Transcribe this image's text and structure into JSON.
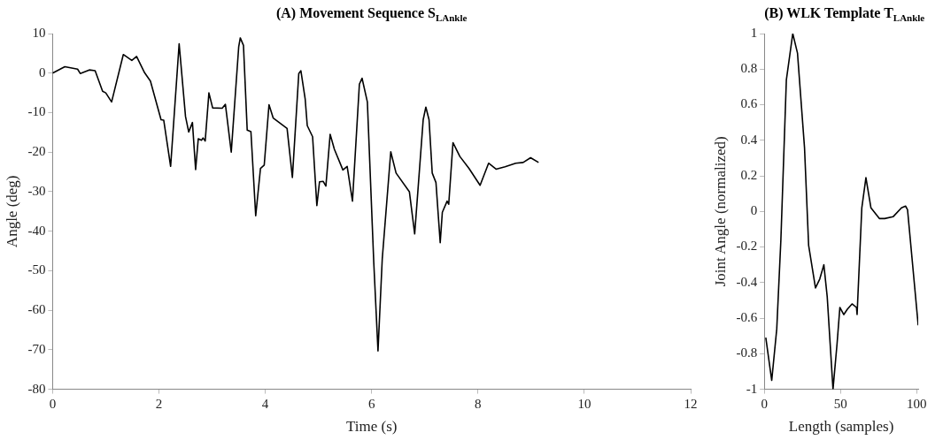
{
  "chart_data": [
    {
      "type": "line",
      "title": "(A) Movement Sequence S$_{LAnkle}$",
      "xlabel": "Time (s)",
      "ylabel": "Angle (deg)",
      "color": "#000000",
      "x": [
        0,
        0.23,
        0.47,
        0.52,
        0.69,
        0.8,
        0.94,
        1.0,
        1.11,
        1.33,
        1.49,
        1.58,
        1.73,
        1.84,
        2.04,
        2.09,
        2.22,
        2.38,
        2.5,
        2.56,
        2.63,
        2.69,
        2.74,
        2.8,
        2.83,
        2.87,
        2.94,
        3.01,
        3.19,
        3.25,
        3.36,
        3.5,
        3.53,
        3.59,
        3.66,
        3.73,
        3.82,
        3.91,
        3.98,
        4.07,
        4.15,
        4.41,
        4.51,
        4.63,
        4.67,
        4.75,
        4.79,
        4.89,
        4.97,
        5.02,
        5.09,
        5.14,
        5.22,
        5.3,
        5.46,
        5.54,
        5.64,
        5.77,
        5.82,
        5.92,
        6.04,
        6.12,
        6.2,
        6.36,
        6.46,
        6.71,
        6.81,
        6.97,
        7.02,
        7.08,
        7.14,
        7.21,
        7.29,
        7.33,
        7.42,
        7.45,
        7.53,
        7.66,
        7.83,
        8.04,
        8.2,
        8.34,
        8.51,
        8.71,
        8.85,
        8.99,
        9.14
      ],
      "values": [
        0,
        1.6,
        1.0,
        -0.1,
        0.8,
        0.6,
        -4.6,
        -5,
        -7.3,
        4.7,
        3.2,
        4.2,
        0.1,
        -2,
        -11.8,
        -11.9,
        -23.6,
        7.4,
        -11,
        -14.9,
        -12.5,
        -24.4,
        -16.6,
        -17,
        -16.4,
        -17.2,
        -5,
        -8.8,
        -8.9,
        -7.9,
        -20,
        6.6,
        8.9,
        7,
        -14.4,
        -14.8,
        -36.1,
        -24.1,
        -23.3,
        -8,
        -11.4,
        -14,
        -26.4,
        -0.1,
        0.6,
        -6.5,
        -13.3,
        -16.1,
        -33.5,
        -27.5,
        -27.4,
        -28.6,
        -15.5,
        -19.3,
        -24.5,
        -23.6,
        -32.4,
        -2.8,
        -1.3,
        -7.3,
        -47.8,
        -70.3,
        -47,
        -19.9,
        -25.3,
        -30,
        -40.7,
        -11.8,
        -8.6,
        -11.8,
        -25.3,
        -27.7,
        -42.9,
        -35.2,
        -32.4,
        -33.2,
        -17.6,
        -21.1,
        -24.1,
        -28.4,
        -22.8,
        -24.3,
        -23.7,
        -22.8,
        -22.6,
        -21.4,
        -22.6
      ],
      "xlim": [
        0,
        12
      ],
      "xticks": [
        0,
        2,
        4,
        6,
        8,
        10,
        12
      ],
      "ylim": [
        -80,
        10
      ],
      "yticks": [
        -80,
        -70,
        -60,
        -50,
        -40,
        -30,
        -20,
        -10,
        0,
        10
      ]
    },
    {
      "type": "line",
      "title": "(B) WLK Template T$_{LAnkle}$",
      "xlabel": "Length (samples)",
      "ylabel": "Joint Angle (normalized)",
      "color": "#000000",
      "x": [
        1,
        4.9,
        8.2,
        10.9,
        14.5,
        18.7,
        21.8,
        26.4,
        29.1,
        33.6,
        36.4,
        39.1,
        41.3,
        45.1,
        47.8,
        49.6,
        52.2,
        54.5,
        57.6,
        60.5,
        60.9,
        64,
        66.7,
        70,
        75.5,
        79,
        84.5,
        90,
        92.7,
        94,
        101
      ],
      "values": [
        -0.71,
        -0.95,
        -0.66,
        -0.16,
        0.74,
        1.0,
        0.89,
        0.36,
        -0.19,
        -0.43,
        -0.38,
        -0.3,
        -0.48,
        -1.0,
        -0.74,
        -0.54,
        -0.58,
        -0.55,
        -0.52,
        -0.54,
        -0.58,
        0.02,
        0.19,
        0.02,
        -0.04,
        -0.04,
        -0.03,
        0.02,
        0.03,
        0.01,
        -0.64
      ],
      "xlim": [
        0,
        101
      ],
      "xticks": [
        0,
        50,
        100
      ],
      "ylim": [
        -1,
        1
      ],
      "yticks": [
        -1,
        -0.8,
        -0.6,
        -0.4,
        -0.2,
        0,
        0.2,
        0.4,
        0.6,
        0.8,
        1
      ]
    }
  ]
}
